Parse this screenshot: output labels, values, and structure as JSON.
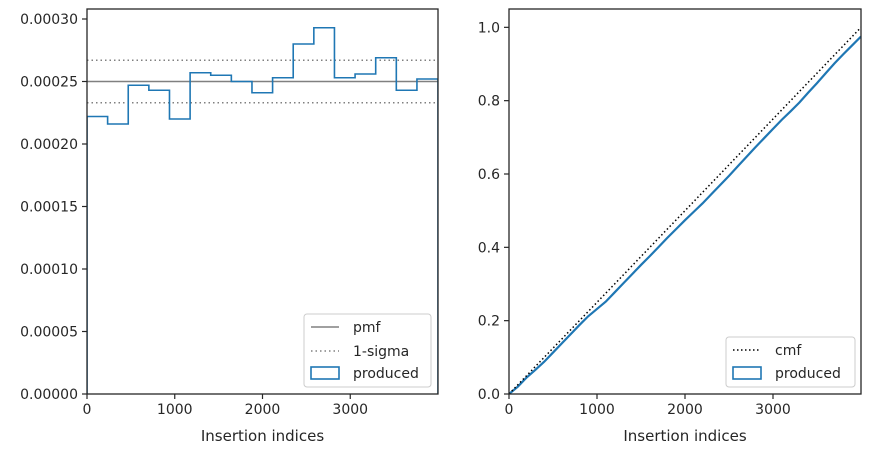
{
  "chart_data": [
    {
      "type": "step",
      "xlabel": "Insertion indices",
      "ylabel": "",
      "xlim": [
        0,
        4000
      ],
      "ylim": [
        0,
        0.000308
      ],
      "xticks": [
        0,
        1000,
        2000,
        3000
      ],
      "xtick_labels": [
        "0",
        "1000",
        "2000",
        "3000"
      ],
      "yticks": [
        0,
        5e-05,
        0.0001,
        0.00015,
        0.0002,
        0.00025,
        0.0003
      ],
      "ytick_labels": [
        "0.00000",
        "0.00005",
        "0.00010",
        "0.00015",
        "0.00020",
        "0.00025",
        "0.00030"
      ],
      "bin_edges": [
        0,
        235,
        470,
        705,
        940,
        1175,
        1410,
        1645,
        1880,
        2115,
        2350,
        2585,
        2820,
        3055,
        3290,
        3525,
        3760,
        4000
      ],
      "series": [
        {
          "name": "produced",
          "kind": "histogram-step",
          "values": [
            0.000222,
            0.000216,
            0.000247,
            0.000243,
            0.00022,
            0.000257,
            0.000255,
            0.00025,
            0.000241,
            0.000253,
            0.00028,
            0.000293,
            0.000253,
            0.000256,
            0.000269,
            0.000243,
            0.000252
          ]
        },
        {
          "name": "pmf",
          "kind": "hline",
          "value": 0.00025
        },
        {
          "name": "1-sigma",
          "kind": "hline-pair",
          "values": [
            0.000233,
            0.000267
          ]
        }
      ],
      "legend": {
        "placement": "lower-right",
        "entries": [
          "pmf",
          "1-sigma",
          "produced"
        ]
      },
      "colors": {
        "produced": "#1f77b4",
        "pmf": "#808080",
        "sigma": "#808080"
      },
      "grid": false
    },
    {
      "type": "line",
      "xlabel": "Insertion indices",
      "ylabel": "",
      "xlim": [
        0,
        4000
      ],
      "ylim": [
        0,
        1.05
      ],
      "xticks": [
        0,
        1000,
        2000,
        3000
      ],
      "xtick_labels": [
        "0",
        "1000",
        "2000",
        "3000"
      ],
      "yticks": [
        0,
        0.2,
        0.4,
        0.6,
        0.8,
        1.0
      ],
      "ytick_labels": [
        "0.0",
        "0.2",
        "0.4",
        "0.6",
        "0.8",
        "1.0"
      ],
      "series": [
        {
          "name": "cmf",
          "kind": "dotted-line",
          "x": [
            0,
            4000
          ],
          "y": [
            0,
            1.0
          ]
        },
        {
          "name": "produced",
          "kind": "step",
          "x": [
            0,
            100,
            200,
            300,
            400,
            500,
            600,
            700,
            800,
            900,
            1000,
            1100,
            1200,
            1300,
            1400,
            1500,
            1600,
            1700,
            1800,
            1900,
            2000,
            2100,
            2200,
            2300,
            2400,
            2500,
            2600,
            2700,
            2800,
            2900,
            3000,
            3100,
            3200,
            3300,
            3400,
            3500,
            3600,
            3700,
            3800,
            3900,
            4000
          ],
          "y": [
            0,
            0.02,
            0.045,
            0.066,
            0.088,
            0.113,
            0.138,
            0.163,
            0.188,
            0.212,
            0.232,
            0.252,
            0.277,
            0.302,
            0.327,
            0.352,
            0.376,
            0.401,
            0.426,
            0.45,
            0.474,
            0.497,
            0.52,
            0.545,
            0.57,
            0.595,
            0.621,
            0.647,
            0.673,
            0.698,
            0.723,
            0.748,
            0.771,
            0.795,
            0.822,
            0.848,
            0.875,
            0.902,
            0.927,
            0.951,
            0.975
          ]
        }
      ],
      "legend": {
        "placement": "lower-right",
        "entries": [
          "cmf",
          "produced"
        ]
      },
      "colors": {
        "produced": "#1f77b4",
        "cmf": "#000000"
      },
      "grid": false
    }
  ]
}
